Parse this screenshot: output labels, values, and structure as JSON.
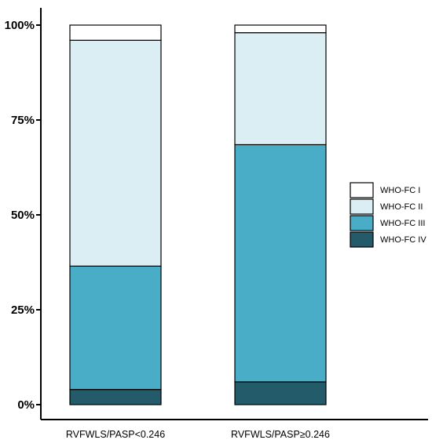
{
  "chart_data": {
    "type": "bar",
    "stacked": true,
    "percent": true,
    "categories": [
      "RVFWLS/PASP<0.246",
      "RVFWLS/PASP≥0.246"
    ],
    "series": [
      {
        "name": "WHO-FC I",
        "color": "#ffffff",
        "values": [
          4,
          2
        ]
      },
      {
        "name": "WHO-FC II",
        "color": "#dbeef4",
        "values": [
          59.5,
          29.5
        ]
      },
      {
        "name": "WHO-FC III",
        "color": "#4aadc8",
        "values": [
          32.5,
          62.5
        ]
      },
      {
        "name": "WHO-FC IV",
        "color": "#235b6b",
        "values": [
          4,
          6
        ]
      }
    ],
    "yticks": [
      "0%",
      "25%",
      "50%",
      "75%",
      "100%"
    ],
    "ylim": [
      0,
      100
    ],
    "legend_position": "right",
    "grid": false
  }
}
